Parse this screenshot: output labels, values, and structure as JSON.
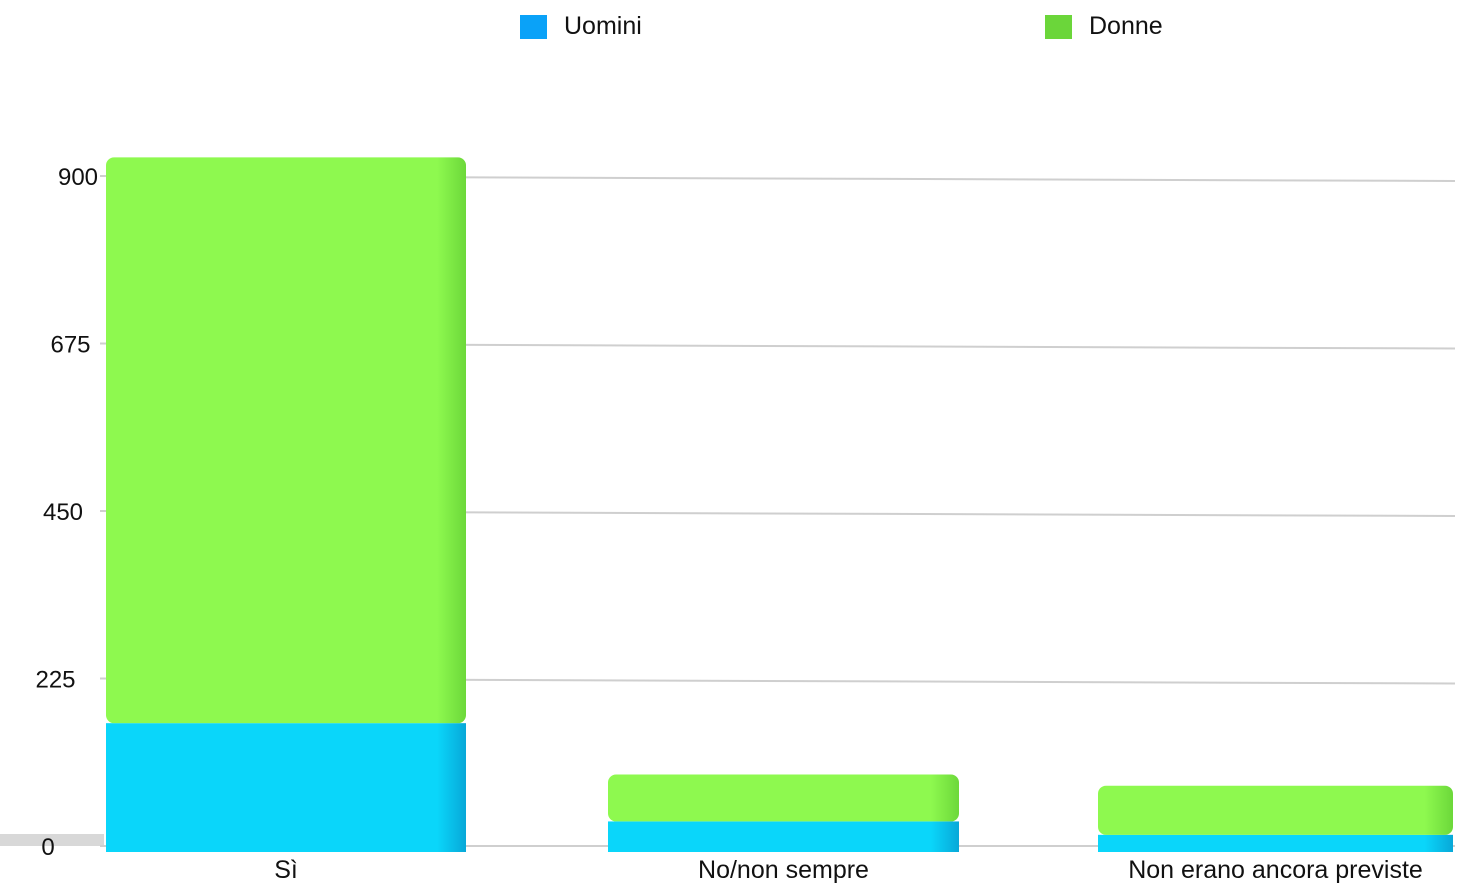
{
  "chart_data": {
    "type": "bar",
    "stacked": true,
    "title": "",
    "xlabel": "",
    "ylabel": "",
    "categories": [
      "Sì",
      "No/non sempre",
      "Non erano ancora previste"
    ],
    "series": [
      {
        "name": "Uomini",
        "color": "#0ad6fa",
        "values": [
          165,
          33,
          15
        ]
      },
      {
        "name": "Donne",
        "color": "#8ef94f",
        "values": [
          760,
          63,
          66
        ]
      }
    ],
    "ylim": [
      0,
      900
    ],
    "yticks": [
      0,
      225,
      450,
      675,
      900
    ],
    "grid": true,
    "legend_position": "top"
  },
  "legend": {
    "items": [
      {
        "label": "Uomini",
        "color": "#0aa2f8"
      },
      {
        "label": "Donne",
        "color": "#6bd63a"
      }
    ]
  }
}
